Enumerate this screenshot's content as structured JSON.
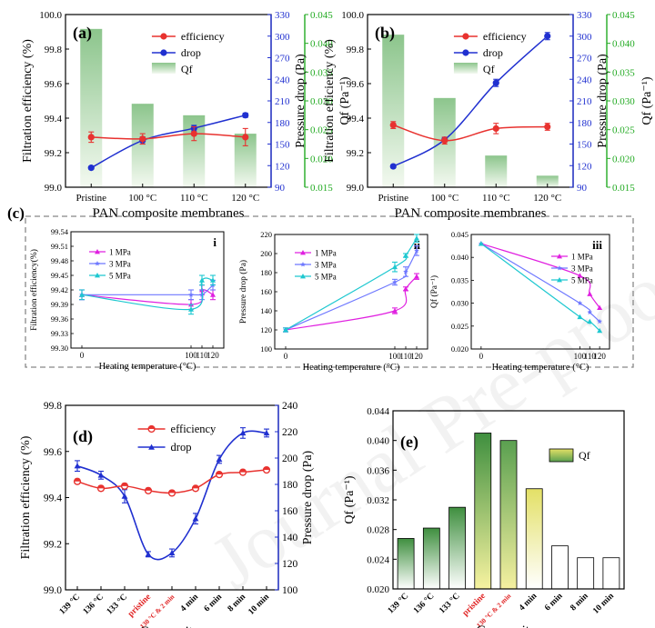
{
  "watermark": "Journal Pre-proofs",
  "colors": {
    "efficiency": "#e8322f",
    "drop": "#2030d0",
    "qf_axis": "#22aa22",
    "qf_bar_top": "#8cc58c",
    "qf_bar_bottom": "#f3f9f0",
    "e_green_top": "#3f8f3f",
    "e_yellow_top": "#e3e066",
    "mpa1": "#e020e0",
    "mpa3": "#6e78ff",
    "mpa5": "#1ec8d0",
    "red_label": "#e02020",
    "dash_box": "#888888"
  },
  "chart_data": [
    {
      "id": "a",
      "type": "line+bar",
      "panel_label": "(a)",
      "xlabel": "PAN composite membranes",
      "categories": [
        "Pristine",
        "100 °C",
        "110 °C",
        "120 °C"
      ],
      "left_axis": {
        "label": "Filtration efficiency (%)",
        "ylim": [
          99.0,
          100.0
        ],
        "ticks": [
          "99.0",
          "99.2",
          "99.4",
          "99.6",
          "99.8",
          "100.0"
        ]
      },
      "right_axis1": {
        "label": "Pressure drop (Pa)",
        "ylim": [
          90,
          330
        ],
        "ticks": [
          "90",
          "120",
          "150",
          "180",
          "210",
          "240",
          "270",
          "300",
          "330"
        ]
      },
      "right_axis2": {
        "label": "Qf (Pa⁻¹)",
        "ylim": [
          0.015,
          0.045
        ],
        "ticks": [
          "0.015",
          "0.020",
          "0.025",
          "0.030",
          "0.035",
          "0.040",
          "0.045"
        ]
      },
      "legend": [
        "efficiency",
        "drop",
        "Qf"
      ],
      "series": [
        {
          "name": "efficiency",
          "values": [
            99.29,
            99.28,
            99.31,
            99.29
          ],
          "errors": [
            0.03,
            0.03,
            0.04,
            0.05
          ]
        },
        {
          "name": "drop",
          "values": [
            117,
            155,
            172,
            190
          ],
          "errors": [
            2,
            5,
            4,
            3
          ]
        },
        {
          "name": "Qf",
          "values": [
            0.0425,
            0.0295,
            0.0275,
            0.0243
          ]
        }
      ]
    },
    {
      "id": "b",
      "type": "line+bar",
      "panel_label": "(b)",
      "xlabel": "PAN composite membranes",
      "categories": [
        "Pristine",
        "100 °C",
        "110 °C",
        "120 °C"
      ],
      "left_axis": {
        "label": "Filtration efficiency (%)",
        "ylim": [
          99.0,
          100.0
        ],
        "ticks": [
          "99.0",
          "99.2",
          "99.4",
          "99.6",
          "99.8",
          "100.0"
        ]
      },
      "right_axis1": {
        "label": "Pressure drop (Pa)",
        "ylim": [
          90,
          330
        ],
        "ticks": [
          "90",
          "120",
          "150",
          "180",
          "210",
          "240",
          "270",
          "300",
          "330"
        ]
      },
      "right_axis2": {
        "label": "Qf (Pa⁻¹)",
        "ylim": [
          0.015,
          0.045
        ],
        "ticks": [
          "0.015",
          "0.020",
          "0.025",
          "0.030",
          "0.035",
          "0.040",
          "0.045"
        ]
      },
      "legend": [
        "efficiency",
        "drop",
        "Qf"
      ],
      "series": [
        {
          "name": "efficiency",
          "values": [
            99.36,
            99.27,
            99.34,
            99.35
          ],
          "errors": [
            0.02,
            0.02,
            0.03,
            0.02
          ]
        },
        {
          "name": "drop",
          "values": [
            119,
            156,
            235,
            300
          ],
          "errors": [
            2,
            3,
            5,
            5
          ]
        },
        {
          "name": "Qf",
          "values": [
            0.0415,
            0.0305,
            0.0205,
            0.017
          ]
        }
      ]
    },
    {
      "id": "c-i",
      "type": "line",
      "panel_label": "i",
      "xlabel": "Heating temperature (°C)",
      "ylabel": "Filtration efficiency(%)",
      "x": [
        0,
        100,
        110,
        120
      ],
      "xticks": [
        "0",
        "100",
        "110",
        "120"
      ],
      "xlim": [
        -10,
        130
      ],
      "ylim": [
        99.3,
        99.54
      ],
      "yticks": [
        "99.30",
        "99.33",
        "99.36",
        "99.39",
        "99.42",
        "99.45",
        "99.48",
        "99.51",
        "99.54"
      ],
      "series": [
        {
          "name": "1 MPa",
          "values": [
            99.41,
            99.39,
            99.42,
            99.41
          ],
          "errors": [
            0.01,
            0.01,
            0.01,
            0.01
          ]
        },
        {
          "name": "3 MPa",
          "values": [
            99.41,
            99.41,
            99.41,
            99.43
          ],
          "errors": [
            0.01,
            0.01,
            0.01,
            0.01
          ]
        },
        {
          "name": "5 MPa",
          "values": [
            99.41,
            99.38,
            99.44,
            99.44
          ],
          "errors": [
            0.01,
            0.01,
            0.01,
            0.01
          ]
        }
      ]
    },
    {
      "id": "c-ii",
      "type": "line",
      "panel_label": "ii",
      "xlabel": "Heating temperature (°C)",
      "ylabel": "Pressure drop (Pa)",
      "x": [
        0,
        100,
        110,
        120
      ],
      "xticks": [
        "0",
        "100",
        "110",
        "120"
      ],
      "xlim": [
        -10,
        130
      ],
      "ylim": [
        100,
        220
      ],
      "yticks": [
        "100",
        "120",
        "140",
        "160",
        "180",
        "200",
        "220"
      ],
      "series": [
        {
          "name": "1 MPa",
          "values": [
            120,
            140,
            163,
            176
          ],
          "errors": [
            2,
            3,
            2,
            3
          ]
        },
        {
          "name": "3 MPa",
          "values": [
            120,
            170,
            181,
            203
          ],
          "errors": [
            2,
            3,
            5,
            5
          ]
        },
        {
          "name": "5 MPa",
          "values": [
            120,
            186,
            198,
            216
          ],
          "errors": [
            2,
            5,
            2,
            4
          ]
        }
      ]
    },
    {
      "id": "c-iii",
      "type": "line",
      "panel_label": "iii",
      "xlabel": "Heating temperature (°C)",
      "ylabel": "Qf (Pa⁻¹)",
      "x": [
        0,
        100,
        110,
        120
      ],
      "xticks": [
        "0",
        "100",
        "110",
        "120"
      ],
      "xlim": [
        -10,
        130
      ],
      "ylim": [
        0.02,
        0.045
      ],
      "yticks": [
        "0.020",
        "0.025",
        "0.030",
        "0.035",
        "0.040",
        "0.045"
      ],
      "series": [
        {
          "name": "1 MPa",
          "values": [
            0.043,
            0.036,
            0.032,
            0.029
          ]
        },
        {
          "name": "3 MPa",
          "values": [
            0.043,
            0.03,
            0.028,
            0.026
          ]
        },
        {
          "name": "5 MPa",
          "values": [
            0.043,
            0.027,
            0.026,
            0.024
          ]
        }
      ]
    },
    {
      "id": "d",
      "type": "line",
      "panel_label": "(d)",
      "xlabel": "Composites",
      "categories": [
        "139 °C",
        "136 °C",
        "133 °C",
        "pristine",
        "130 °C & 2 min",
        "4 min",
        "6 min",
        "8 min",
        "10 min"
      ],
      "red_categories": [
        "pristine",
        "130 °C & 2 min"
      ],
      "left_axis": {
        "label": "Filtration efficiency (%)",
        "ylim": [
          99.0,
          99.8
        ],
        "ticks": [
          "99.0",
          "99.2",
          "99.4",
          "99.6",
          "99.8"
        ]
      },
      "right_axis1": {
        "label": "Pressure drop (Pa)",
        "ylim": [
          100,
          240
        ],
        "ticks": [
          "100",
          "120",
          "140",
          "160",
          "180",
          "200",
          "220",
          "240"
        ]
      },
      "legend": [
        "efficiency",
        "drop"
      ],
      "series": [
        {
          "name": "efficiency",
          "values": [
            99.47,
            99.44,
            99.45,
            99.43,
            99.42,
            99.44,
            99.5,
            99.51,
            99.52
          ],
          "errors": [
            0.01,
            0.01,
            0.01,
            0.01,
            0.01,
            0.005,
            0.01,
            0.01,
            0.005
          ]
        },
        {
          "name": "drop",
          "values": [
            194,
            187,
            171,
            127,
            128,
            154,
            199,
            219,
            219
          ],
          "errors": [
            4,
            3,
            5,
            2,
            3,
            4,
            3,
            4,
            3
          ]
        }
      ]
    },
    {
      "id": "e",
      "type": "bar",
      "panel_label": "(e)",
      "xlabel": "Composites",
      "ylabel": "Qf (Pa⁻¹)",
      "categories": [
        "139 °C",
        "136 °C",
        "133 °C",
        "pristine",
        "130 °C & 2 min",
        "4 min",
        "6 min",
        "8 min",
        "10 min"
      ],
      "red_categories": [
        "pristine",
        "130 °C & 2 min"
      ],
      "ylim": [
        0.02,
        0.044
      ],
      "yticks": [
        "0.020",
        "0.024",
        "0.028",
        "0.032",
        "0.036",
        "0.040",
        "0.044"
      ],
      "legend": [
        "Qf"
      ],
      "series": [
        {
          "name": "Qf",
          "values": [
            0.0268,
            0.0282,
            0.031,
            0.041,
            0.04,
            0.0335,
            0.0258,
            0.0242,
            0.0242
          ]
        }
      ],
      "bar_styles": [
        "green",
        "green",
        "green",
        "green-yellow",
        "yellow-green",
        "yellow",
        "white",
        "white",
        "white"
      ]
    }
  ],
  "panel_c_label": "(c)"
}
